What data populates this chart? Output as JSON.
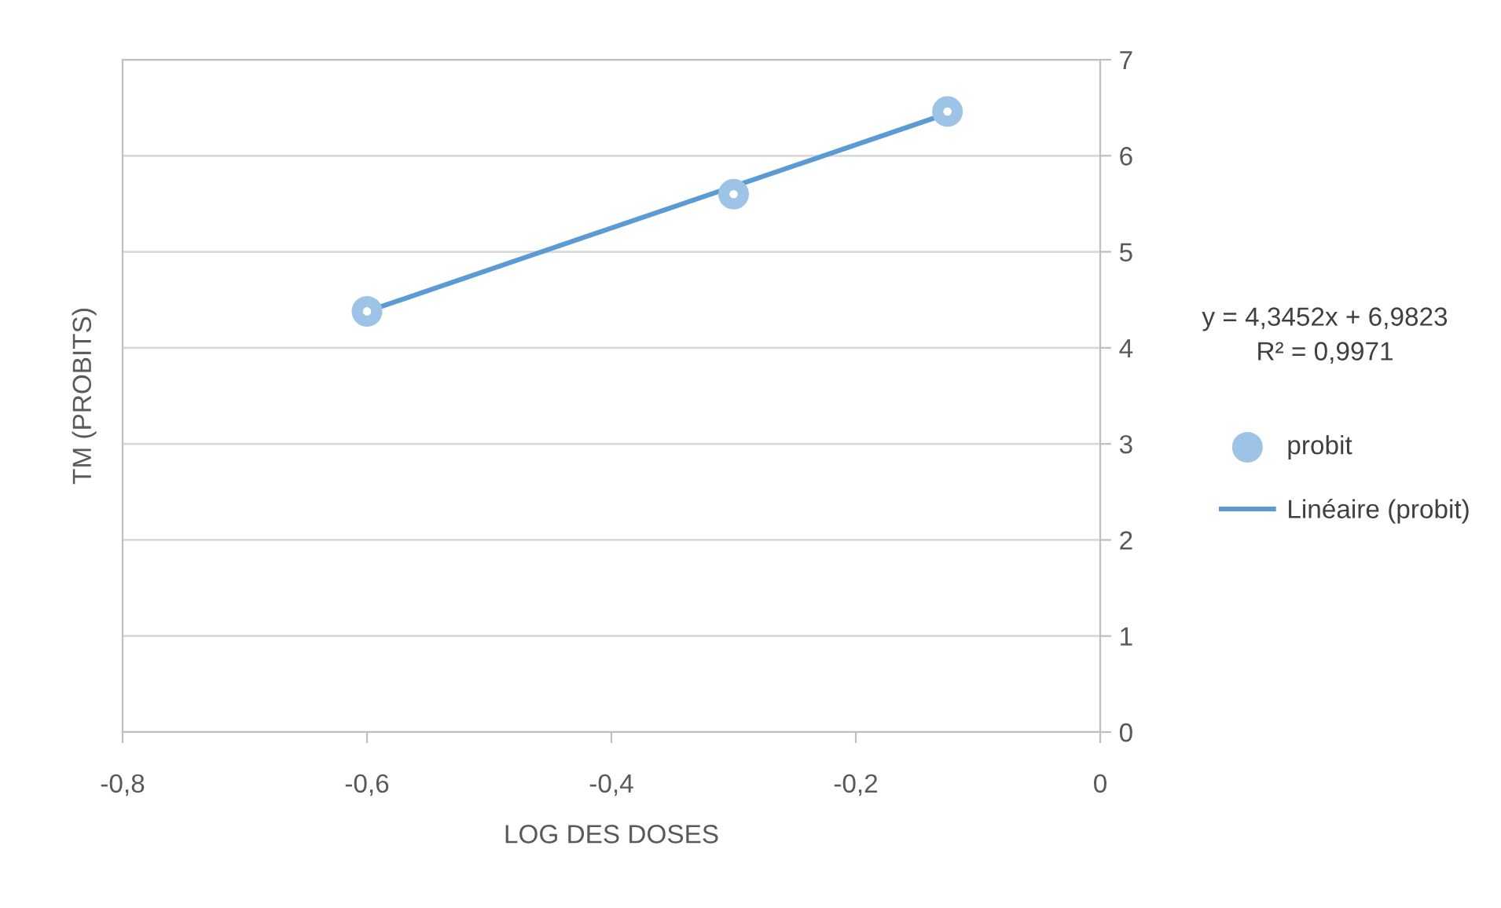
{
  "chart_data": {
    "type": "scatter",
    "xlabel": "LOG DES DOSES",
    "ylabel": "TM (PROBITS)",
    "xlim": [
      -0.8,
      0
    ],
    "xticks": [
      {
        "value": -0.8,
        "label": "-0,8"
      },
      {
        "value": -0.6,
        "label": "-0,6"
      },
      {
        "value": -0.4,
        "label": "-0,4"
      },
      {
        "value": -0.2,
        "label": "-0,2"
      },
      0
    ],
    "ylim": [
      0,
      7
    ],
    "yticks": [
      0,
      1,
      2,
      3,
      4,
      5,
      6,
      7
    ],
    "grid": "y",
    "legend": "right",
    "marker": "circle",
    "annotations": [
      "y = 4,3452x + 6,9823",
      "R² = 0,9971"
    ],
    "series": [
      {
        "name": "probit",
        "color": "#9dc3e6",
        "x": [
          -0.6,
          -0.3,
          -0.125
        ],
        "values": [
          4.38,
          5.6,
          6.46
        ]
      },
      {
        "name": "Linéaire (probit)",
        "type": "line",
        "color": "#5b9bd5",
        "line_style": "solid",
        "x": [
          -0.6,
          -0.125
        ],
        "values": [
          4.38,
          6.44
        ]
      }
    ]
  }
}
